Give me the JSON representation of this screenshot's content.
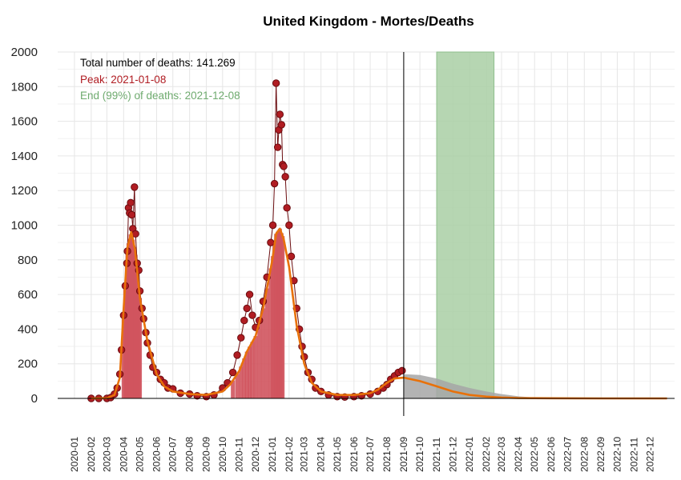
{
  "chart_data": {
    "type": "scatter",
    "title": "United Kingdom - Mortes/Deaths",
    "xlabel": "",
    "ylabel": "",
    "x_range": [
      "2019-12-01",
      "2023-01-15"
    ],
    "ylim": [
      0,
      2000
    ],
    "yticks": [
      0,
      200,
      400,
      600,
      800,
      1000,
      1200,
      1400,
      1600,
      1800,
      2000
    ],
    "xticks": [
      "2020-01",
      "2020-02",
      "2020-03",
      "2020-04",
      "2020-05",
      "2020-06",
      "2020-07",
      "2020-08",
      "2020-09",
      "2020-10",
      "2020-11",
      "2020-12",
      "2021-01",
      "2021-02",
      "2021-03",
      "2021-04",
      "2021-05",
      "2021-06",
      "2021-07",
      "2021-08",
      "2021-09",
      "2021-10",
      "2021-11",
      "2021-12",
      "2022-01",
      "2022-02",
      "2022-03",
      "2022-04",
      "2022-05",
      "2022-06",
      "2022-07",
      "2022-08",
      "2022-09",
      "2022-10",
      "2022-11",
      "2022-12"
    ],
    "grid": true,
    "annotations": {
      "total": "Total number of deaths: 141.269",
      "peak": "Peak: 2021-01-08",
      "end": "End (99%) of deaths: 2021-12-08"
    },
    "vline_date": "2021-09-01",
    "shaded_band": [
      "2021-11-01",
      "2022-02-15"
    ],
    "colors": {
      "points": "#b01c22",
      "points_edge": "#6b0d10",
      "bars": "#d0545e",
      "fit": "#e8710a",
      "projection": "#a6a6a6",
      "band": "#a9cfa5",
      "peak_text": "#b01c22",
      "end_text": "#6fab6f",
      "grid": "#e6e6e6"
    },
    "series": [
      {
        "kind": "daily_deaths_observed",
        "x": [
          "2020-02-01",
          "2020-02-15",
          "2020-03-01",
          "2020-03-08",
          "2020-03-15",
          "2020-03-20",
          "2020-03-25",
          "2020-03-28",
          "2020-04-01",
          "2020-04-04",
          "2020-04-07",
          "2020-04-08",
          "2020-04-10",
          "2020-04-12",
          "2020-04-14",
          "2020-04-16",
          "2020-04-18",
          "2020-04-21",
          "2020-04-23",
          "2020-04-26",
          "2020-04-29",
          "2020-05-01",
          "2020-05-05",
          "2020-05-08",
          "2020-05-12",
          "2020-05-15",
          "2020-05-20",
          "2020-05-25",
          "2020-06-01",
          "2020-06-08",
          "2020-06-15",
          "2020-06-22",
          "2020-07-01",
          "2020-07-15",
          "2020-08-01",
          "2020-08-15",
          "2020-09-01",
          "2020-09-15",
          "2020-10-01",
          "2020-10-10",
          "2020-10-20",
          "2020-10-28",
          "2020-11-04",
          "2020-11-10",
          "2020-11-15",
          "2020-11-20",
          "2020-11-25",
          "2020-12-01",
          "2020-12-08",
          "2020-12-15",
          "2020-12-22",
          "2020-12-29",
          "2021-01-02",
          "2021-01-05",
          "2021-01-08",
          "2021-01-11",
          "2021-01-13",
          "2021-01-15",
          "2021-01-18",
          "2021-01-20",
          "2021-01-22",
          "2021-01-25",
          "2021-01-28",
          "2021-02-01",
          "2021-02-05",
          "2021-02-10",
          "2021-02-15",
          "2021-02-20",
          "2021-02-25",
          "2021-03-01",
          "2021-03-08",
          "2021-03-15",
          "2021-03-22",
          "2021-04-01",
          "2021-04-15",
          "2021-05-01",
          "2021-05-15",
          "2021-06-01",
          "2021-06-15",
          "2021-07-01",
          "2021-07-15",
          "2021-07-25",
          "2021-08-01",
          "2021-08-08",
          "2021-08-15",
          "2021-08-22",
          "2021-08-29"
        ],
        "values": [
          0,
          0,
          0,
          5,
          25,
          60,
          140,
          280,
          480,
          650,
          780,
          850,
          1100,
          1070,
          1130,
          1060,
          980,
          1220,
          950,
          780,
          740,
          620,
          520,
          460,
          380,
          320,
          250,
          180,
          150,
          110,
          90,
          60,
          55,
          30,
          25,
          15,
          10,
          20,
          60,
          90,
          150,
          250,
          350,
          450,
          520,
          600,
          480,
          410,
          450,
          560,
          700,
          900,
          1000,
          1240,
          1820,
          1450,
          1550,
          1640,
          1580,
          1350,
          1340,
          1280,
          1100,
          1000,
          820,
          680,
          520,
          400,
          300,
          240,
          150,
          110,
          60,
          40,
          20,
          10,
          8,
          10,
          15,
          25,
          40,
          60,
          80,
          110,
          130,
          150,
          160
        ]
      },
      {
        "kind": "fitted_curve",
        "x": [
          "2020-02-01",
          "2020-03-01",
          "2020-03-15",
          "2020-03-25",
          "2020-04-01",
          "2020-04-08",
          "2020-04-15",
          "2020-04-22",
          "2020-05-01",
          "2020-05-15",
          "2020-06-01",
          "2020-06-15",
          "2020-07-01",
          "2020-08-01",
          "2020-09-01",
          "2020-10-01",
          "2020-10-15",
          "2020-11-01",
          "2020-11-15",
          "2020-12-01",
          "2020-12-15",
          "2021-01-01",
          "2021-01-08",
          "2021-01-15",
          "2021-01-22",
          "2021-02-01",
          "2021-02-15",
          "2021-03-01",
          "2021-03-15",
          "2021-04-01",
          "2021-05-01",
          "2021-06-01",
          "2021-07-01",
          "2021-07-15",
          "2021-08-01",
          "2021-08-15",
          "2021-09-01",
          "2021-10-01",
          "2021-11-01",
          "2021-12-01",
          "2022-01-01",
          "2022-02-01",
          "2022-03-01",
          "2022-04-01",
          "2022-06-01",
          "2022-09-01",
          "2022-12-01",
          "2023-01-01"
        ],
        "values": [
          0,
          2,
          20,
          120,
          520,
          870,
          960,
          860,
          580,
          330,
          140,
          70,
          40,
          25,
          20,
          40,
          80,
          160,
          270,
          360,
          520,
          800,
          950,
          980,
          920,
          760,
          420,
          200,
          90,
          40,
          20,
          20,
          30,
          50,
          90,
          115,
          120,
          100,
          70,
          40,
          20,
          10,
          5,
          2,
          1,
          0,
          0,
          0
        ]
      },
      {
        "kind": "projection_band",
        "x": [
          "2021-09-01",
          "2021-10-01",
          "2021-11-01",
          "2021-12-01",
          "2022-01-01",
          "2022-02-01",
          "2022-03-01",
          "2022-04-01",
          "2022-05-01",
          "2022-06-01"
        ],
        "values": [
          140,
          135,
          115,
          85,
          60,
          40,
          25,
          12,
          5,
          2
        ]
      }
    ]
  }
}
